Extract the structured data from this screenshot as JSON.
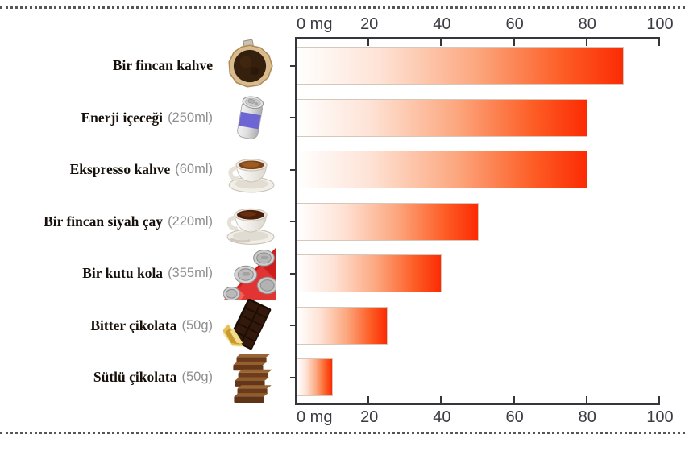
{
  "chart_data": {
    "type": "bar",
    "orientation": "horizontal",
    "unit": "mg",
    "title": "",
    "xlabel": "mg",
    "xlim": [
      0,
      100
    ],
    "grid": false,
    "tick_values": [
      0,
      20,
      40,
      60,
      80,
      100
    ],
    "tick_labels": [
      "0 mg",
      "20",
      "40",
      "60",
      "80",
      "100"
    ],
    "axis_labels_position": "top and bottom",
    "categories": [
      "Bir fincan kahve",
      "Enerji içeceği",
      "Ekspresso kahve",
      "Bir fincan siyah çay",
      "Bir kutu kola",
      "Bitter çikolata",
      "Sütlü çikolata"
    ],
    "quantities": [
      "",
      "(250ml)",
      "(60ml)",
      "(220ml)",
      "(355ml)",
      "(50g)",
      "(50g)"
    ],
    "values": [
      90,
      80,
      80,
      50,
      40,
      25,
      10
    ],
    "icons": [
      "coffee-filter-icon",
      "energy-drink-can-icon",
      "espresso-cup-icon",
      "black-tea-cup-icon",
      "cola-cans-icon",
      "dark-chocolate-icon",
      "milk-chocolate-icon"
    ]
  },
  "colors": {
    "bar_gradient_start": "#ffffff",
    "bar_gradient_end": "#fc2b04",
    "axis": "#35353c",
    "tick_label": "#3b3b43",
    "item_label": "#17100a",
    "quantity_label": "#8f8f8f",
    "dotted_divider": "#555555"
  }
}
